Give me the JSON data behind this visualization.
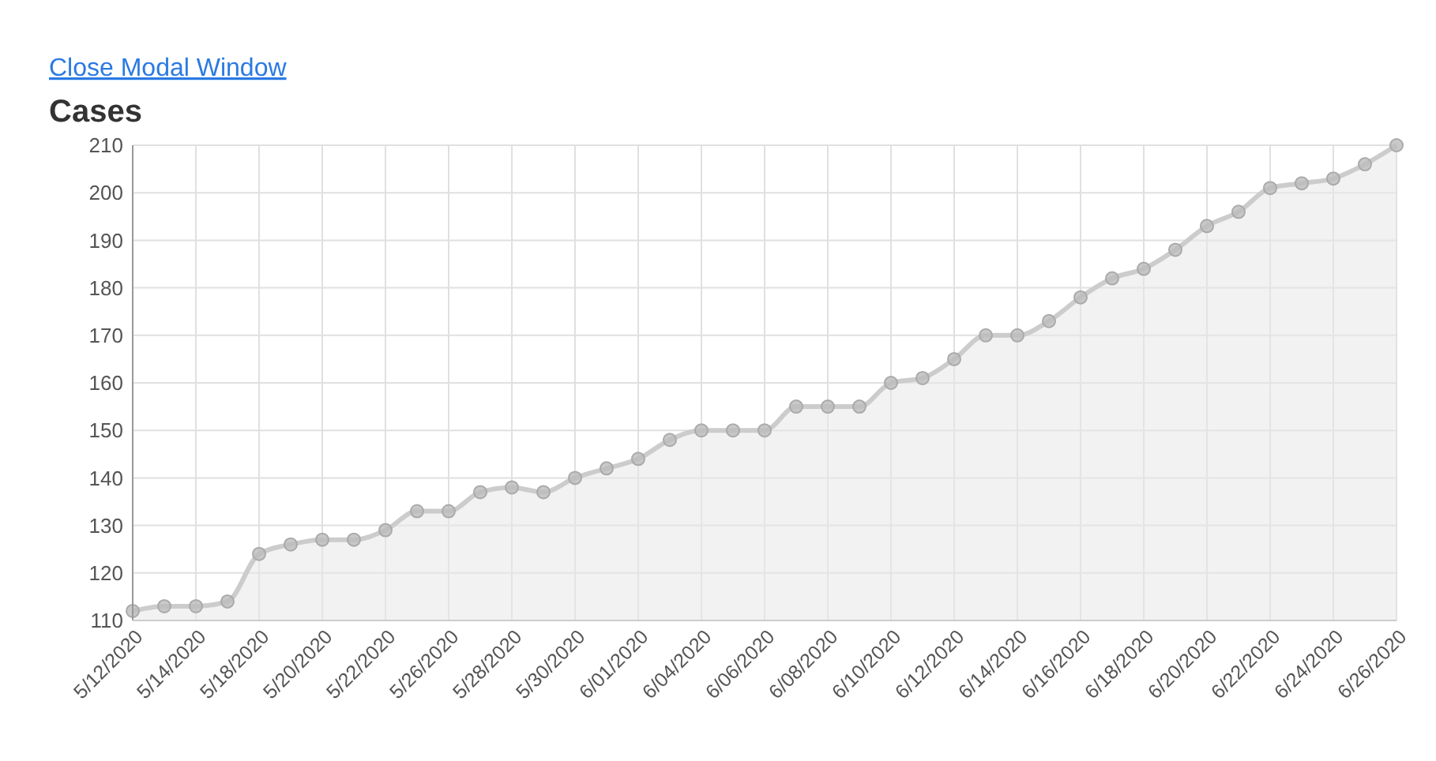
{
  "chart_data": {
    "type": "area",
    "title": "Cases",
    "annotations": [
      "Close Modal Window"
    ],
    "categories": [
      "5/12/2020",
      null,
      "5/14/2020",
      null,
      "5/18/2020",
      null,
      "5/20/2020",
      null,
      "5/22/2020",
      null,
      "5/26/2020",
      null,
      "5/28/2020",
      null,
      "5/30/2020",
      null,
      "6/01/2020",
      null,
      "6/04/2020",
      null,
      "6/06/2020",
      null,
      "6/08/2020",
      null,
      "6/10/2020",
      null,
      "6/12/2020",
      null,
      "6/14/2020",
      null,
      "6/16/2020",
      null,
      "6/18/2020",
      null,
      "6/20/2020",
      null,
      "6/22/2020",
      null,
      "6/24/2020",
      null,
      "6/26/2020"
    ],
    "series": [
      {
        "color": "#cccccc",
        "values": [
          112,
          113,
          113,
          114,
          124,
          126,
          127,
          127,
          129,
          133,
          133,
          137,
          138,
          137,
          140,
          142,
          144,
          148,
          150,
          150,
          150,
          155,
          155,
          155,
          160,
          161,
          165,
          170,
          170,
          173,
          178,
          182,
          184,
          188,
          193,
          196,
          201,
          202,
          203,
          206,
          210
        ]
      }
    ],
    "ylim": [
      110,
      210
    ],
    "yticks": [
      110,
      120,
      130,
      140,
      150,
      160,
      170,
      180,
      190,
      200,
      210
    ],
    "grid": true,
    "marker": "circle",
    "line_style": "solid"
  }
}
